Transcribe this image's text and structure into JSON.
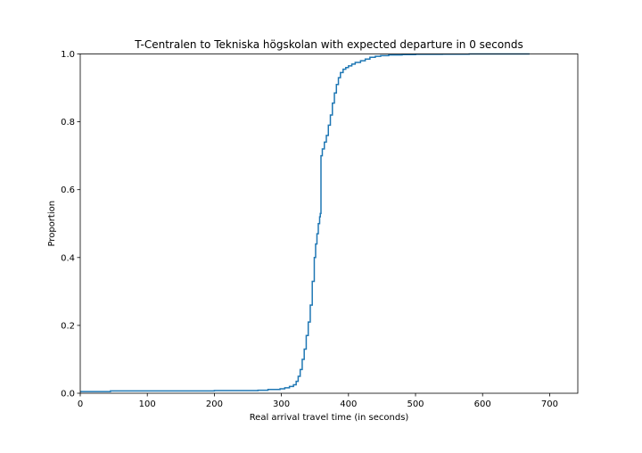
{
  "chart_data": {
    "type": "line",
    "title": "T-Centralen to Tekniska högskolan with expected departure in 0 seconds",
    "xlabel": "Real arrival travel time (in seconds)",
    "ylabel": "Proportion",
    "xlim": [
      0,
      742
    ],
    "ylim": [
      0,
      1.0
    ],
    "xticks": [
      0,
      100,
      200,
      300,
      400,
      500,
      600,
      700
    ],
    "xtick_labels": [
      "0",
      "100",
      "200",
      "300",
      "400",
      "500",
      "600",
      "700"
    ],
    "yticks": [
      0.0,
      0.2,
      0.4,
      0.6,
      0.8,
      1.0
    ],
    "ytick_labels": [
      "0.0",
      "0.2",
      "0.4",
      "0.6",
      "0.8",
      "1.0"
    ],
    "grid": false,
    "series": [
      {
        "color": "#1f77b4",
        "x": [
          0,
          45,
          200,
          265,
          280,
          298,
          305,
          312,
          318,
          322,
          325,
          328,
          331,
          334,
          337,
          340,
          343,
          346,
          349,
          351,
          353,
          355,
          357,
          358,
          359,
          359,
          361,
          364,
          367,
          370,
          373,
          376,
          379,
          382,
          385,
          388,
          392,
          396,
          400,
          405,
          410,
          418,
          425,
          432,
          440,
          448,
          460,
          480,
          500,
          540,
          580,
          670
        ],
        "y": [
          0.005,
          0.007,
          0.008,
          0.009,
          0.011,
          0.013,
          0.016,
          0.02,
          0.025,
          0.035,
          0.05,
          0.07,
          0.1,
          0.13,
          0.17,
          0.21,
          0.26,
          0.33,
          0.4,
          0.44,
          0.47,
          0.5,
          0.52,
          0.53,
          0.53,
          0.7,
          0.72,
          0.74,
          0.76,
          0.79,
          0.82,
          0.855,
          0.885,
          0.91,
          0.93,
          0.945,
          0.955,
          0.96,
          0.965,
          0.97,
          0.975,
          0.98,
          0.985,
          0.99,
          0.993,
          0.995,
          0.997,
          0.998,
          0.999,
          0.9995,
          1.0,
          1.0
        ]
      }
    ]
  }
}
